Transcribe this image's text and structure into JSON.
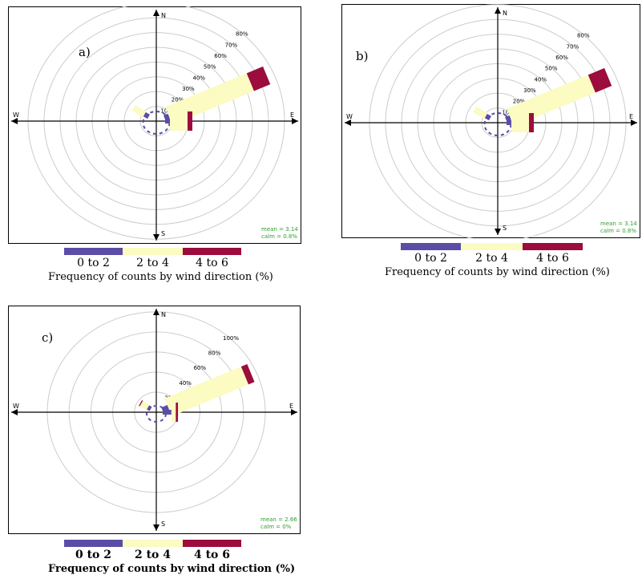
{
  "colors": {
    "speed_0_2": "#5b4da6",
    "speed_2_4": "#fbfbc2",
    "speed_4_6": "#9c0c3c",
    "grid": "#cccccc",
    "axis": "#000000",
    "stats_text": "#2e9e2e"
  },
  "legend": {
    "bins": [
      "0 to 2",
      "2 to 4",
      "4 to 6"
    ],
    "caption": "Frequency of counts by wind direction (%)"
  },
  "chart_data": [
    {
      "type": "windrose",
      "panel_label": "a)",
      "directions": [
        "N",
        "E",
        "S",
        "W"
      ],
      "radial_max": 80,
      "radial_ticks": [
        10,
        20,
        30,
        40,
        50,
        60,
        70,
        80
      ],
      "radial_tick_labels": [
        "10%",
        "20%",
        "30%",
        "40%",
        "50%",
        "60%",
        "70%",
        "80%"
      ],
      "speed_bins": [
        "0 to 2",
        "2 to 4",
        "4 to 6"
      ],
      "sectors": [
        {
          "direction_deg": 67.5,
          "values": [
            3,
            55,
            11
          ]
        },
        {
          "direction_deg": 90,
          "values": [
            3,
            11,
            3
          ]
        },
        {
          "direction_deg": 300,
          "values": [
            3,
            8,
            0
          ]
        }
      ],
      "mean": "mean = 3.14",
      "calm": "calm = 0.8%"
    },
    {
      "type": "windrose",
      "panel_label": "b)",
      "directions": [
        "N",
        "E",
        "S",
        "W"
      ],
      "radial_max": 80,
      "radial_ticks": [
        10,
        20,
        30,
        40,
        50,
        60,
        70,
        80
      ],
      "radial_tick_labels": [
        "10%",
        "20%",
        "30%",
        "40%",
        "50%",
        "60%",
        "70%",
        "80%"
      ],
      "speed_bins": [
        "0 to 2",
        "2 to 4",
        "4 to 6"
      ],
      "sectors": [
        {
          "direction_deg": 67.5,
          "values": [
            3,
            55,
            11
          ]
        },
        {
          "direction_deg": 90,
          "values": [
            3,
            11,
            3
          ]
        },
        {
          "direction_deg": 300,
          "values": [
            3,
            8,
            0
          ]
        }
      ],
      "mean": "mean = 3.14",
      "calm": "calm = 0.8%"
    },
    {
      "type": "windrose",
      "panel_label": "c)",
      "directions": [
        "N",
        "E",
        "S",
        "W"
      ],
      "radial_max": 100,
      "radial_ticks": [
        20,
        40,
        60,
        80,
        100
      ],
      "radial_tick_labels": [
        "20%",
        "40%",
        "60%",
        "80%",
        "100%"
      ],
      "speed_bins": [
        "0 to 2",
        "2 to 4",
        "4 to 6"
      ],
      "sectors": [
        {
          "direction_deg": 67.5,
          "values": [
            6,
            76,
            6
          ]
        },
        {
          "direction_deg": 90,
          "values": [
            8,
            4,
            2
          ]
        },
        {
          "direction_deg": 300,
          "values": [
            3,
            7,
            1
          ]
        }
      ],
      "mean": "mean = 2.66",
      "calm": "calm = 0%"
    }
  ]
}
